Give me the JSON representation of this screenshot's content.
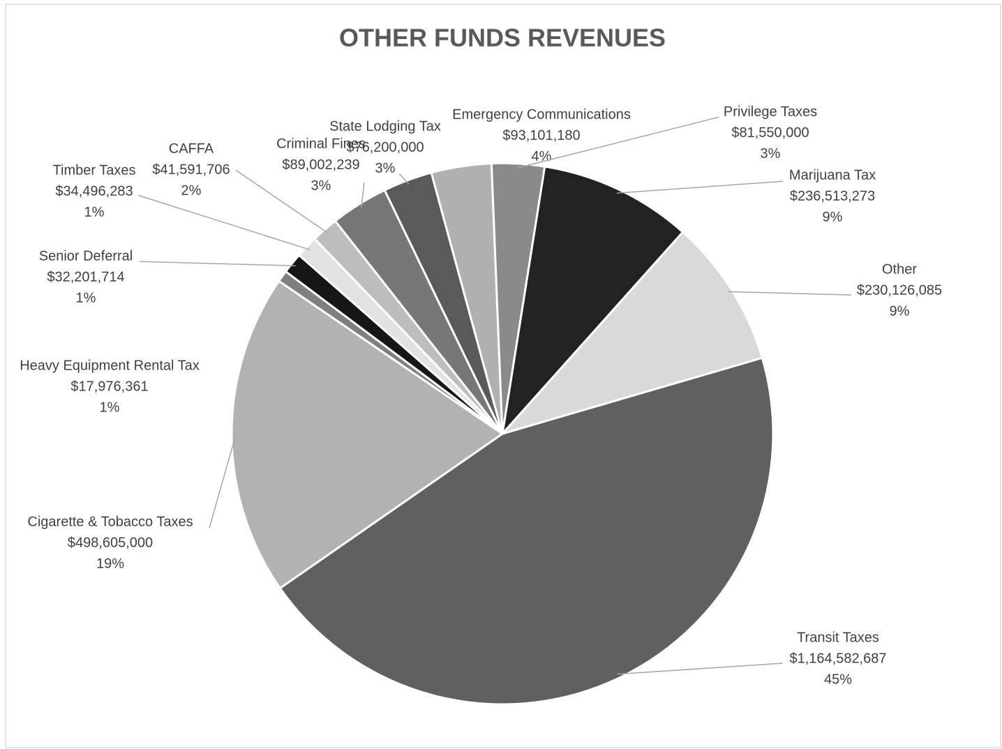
{
  "chart_data": {
    "type": "pie",
    "title": "OTHER FUNDS REVENUES",
    "categories": [
      "Marijuana Tax",
      "Other",
      "Transit Taxes",
      "Cigarette & Tobacco Taxes",
      "Heavy Equipment Rental Tax",
      "Senior Deferral",
      "Timber Taxes",
      "CAFFA",
      "Criminal Fines",
      "State Lodging Tax",
      "Emergency Communications",
      "Privilege Taxes"
    ],
    "values": [
      236513273,
      230126085,
      1164582687,
      498605000,
      17976361,
      32201714,
      34496283,
      41591706,
      89002239,
      76200000,
      93101180,
      81550000
    ],
    "value_labels": [
      "$236,513,273",
      "$230,126,085",
      "$1,164,582,687",
      "$498,605,000",
      "$17,976,361",
      "$32,201,714",
      "$34,496,283",
      "$41,591,706",
      "$89,002,239",
      "$76,200,000",
      "$93,101,180",
      "$81,550,000"
    ],
    "percent_labels": [
      "9%",
      "9%",
      "45%",
      "19%",
      "1%",
      "1%",
      "1%",
      "2%",
      "3%",
      "3%",
      "4%",
      "3%"
    ],
    "colors": [
      "#222222",
      "#d9d9d9",
      "#606060",
      "#b2b2b2",
      "#7f7f7f",
      "#161616",
      "#e2e2e2",
      "#bdbdbd",
      "#777777",
      "#5a5a5a",
      "#b0b0b0",
      "#8a8a8a"
    ],
    "start_angle": 9
  }
}
